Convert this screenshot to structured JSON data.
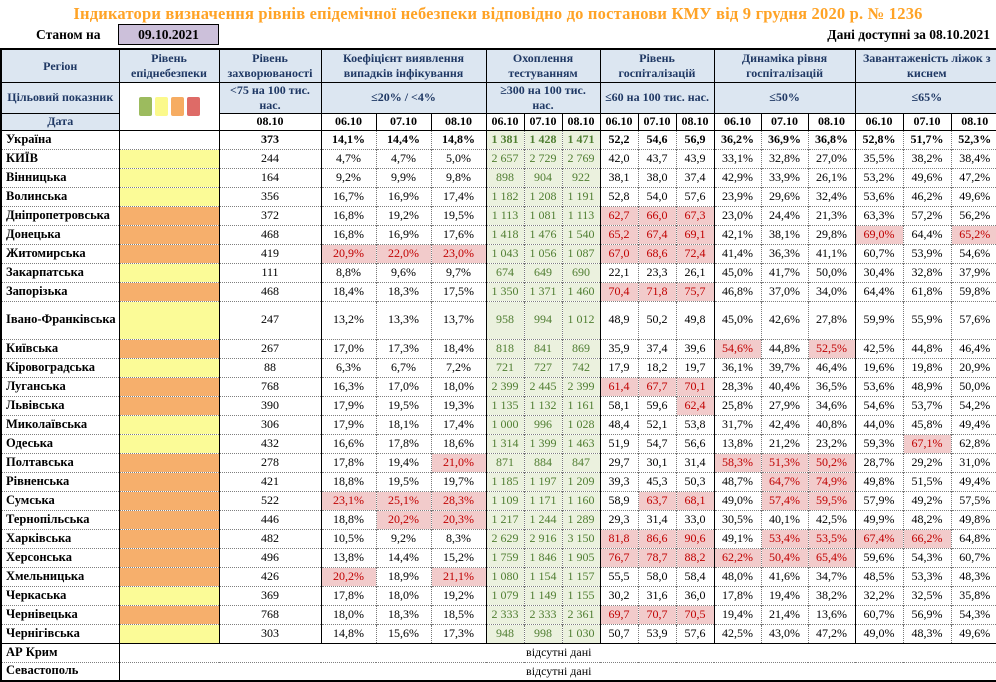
{
  "title": "Індикатори визначення рівнів епідемічної небезпеки відповідно до постанови КМУ від 9 грудня 2020 р. № 1236",
  "as_of": {
    "label": "Станом на",
    "date": "09.10.2021"
  },
  "available": {
    "label": "Дані доступні за",
    "date": "08.10.2021"
  },
  "colors": {
    "header_bg": "#DCE6F1",
    "header_text": "#1F3864",
    "title_orange": "#FFA326",
    "asof_box_bg": "#CCC0DA",
    "test_bg": "#EBF1DE",
    "test_text": "#507E32",
    "alert_bg": "#F2CBCB",
    "alert_text": "#C00000"
  },
  "level_colors": {
    "yellow": "#FBFB97",
    "orange": "#F6AF6C"
  },
  "legend": {
    "colors": [
      "#9CBB5E",
      "#FBF98B",
      "#F6AC62",
      "#DE6B67"
    ]
  },
  "header": {
    "region_label": "Регіон",
    "target_label": "Цільовий показник",
    "date_label": "Дата",
    "groups": [
      {
        "name": "Рівень епіднебезпеки",
        "target": "",
        "dates": []
      },
      {
        "name": "Рівень захворюваності",
        "target": "<75 на 100 тис. нас.",
        "dates": [
          "08.10"
        ]
      },
      {
        "name": "Коефіцієнт виявлення випадків інфікування",
        "target": "≤20% / <4%",
        "dates": [
          "06.10",
          "07.10",
          "08.10"
        ]
      },
      {
        "name": "Охоплення тестуванням",
        "target": "≥300 на 100 тис. нас.",
        "dates": [
          "06.10",
          "07.10",
          "08.10"
        ]
      },
      {
        "name": "Рівень госпіталізацій",
        "target": "≤60 на 100 тис. нас.",
        "dates": [
          "06.10",
          "07.10",
          "08.10"
        ]
      },
      {
        "name": "Динаміка рівня госпіталізацій",
        "target": "≤50%",
        "dates": [
          "06.10",
          "07.10",
          "08.10"
        ]
      },
      {
        "name": "Завантаженість ліжок з киснем",
        "target": "≤65%",
        "dates": [
          "06.10",
          "07.10",
          "08.10"
        ]
      }
    ]
  },
  "rows": [
    {
      "region": "Україна",
      "level": "",
      "bold": true,
      "incidence": "373",
      "coef": [
        "14,1%",
        "14,4%",
        "14,8%"
      ],
      "test": [
        "1 381",
        "1 428",
        "1 471"
      ],
      "hosp": [
        "52,2",
        "54,6",
        "56,9"
      ],
      "dyn": [
        "36,2%",
        "36,9%",
        "36,8%"
      ],
      "beds": [
        "52,8%",
        "51,7%",
        "52,3%"
      ]
    },
    {
      "region": "КИЇВ",
      "level": "yellow",
      "incidence": "244",
      "coef": [
        "4,7%",
        "4,7%",
        "5,0%"
      ],
      "test": [
        "2 657",
        "2 729",
        "2 769"
      ],
      "hosp": [
        "42,0",
        "43,7",
        "43,9"
      ],
      "dyn": [
        "33,1%",
        "32,8%",
        "27,0%"
      ],
      "beds": [
        "35,5%",
        "38,2%",
        "38,4%"
      ]
    },
    {
      "region": "Вінницька",
      "level": "yellow",
      "incidence": "164",
      "coef": [
        "9,2%",
        "9,9%",
        "9,8%"
      ],
      "test": [
        "898",
        "904",
        "922"
      ],
      "hosp": [
        "38,1",
        "38,0",
        "37,4"
      ],
      "dyn": [
        "42,9%",
        "33,9%",
        "26,1%"
      ],
      "beds": [
        "53,2%",
        "49,6%",
        "47,2%"
      ]
    },
    {
      "region": "Волинська",
      "level": "yellow",
      "incidence": "356",
      "coef": [
        "16,7%",
        "16,9%",
        "17,4%"
      ],
      "test": [
        "1 182",
        "1 208",
        "1 191"
      ],
      "hosp": [
        "52,8",
        "54,0",
        "57,6"
      ],
      "dyn": [
        "23,9%",
        "29,6%",
        "32,4%"
      ],
      "beds": [
        "53,6%",
        "46,2%",
        "49,6%"
      ]
    },
    {
      "region": "Дніпропетровська",
      "level": "orange",
      "incidence": "372",
      "coef": [
        "16,8%",
        "19,2%",
        "19,5%"
      ],
      "test": [
        "1 113",
        "1 081",
        "1 113"
      ],
      "hosp": [
        {
          "v": "62,7",
          "red": true
        },
        {
          "v": "66,0",
          "red": true
        },
        {
          "v": "67,3",
          "red": true
        }
      ],
      "dyn": [
        "23,0%",
        "24,4%",
        "21,3%"
      ],
      "beds": [
        "63,3%",
        "57,2%",
        "56,2%"
      ]
    },
    {
      "region": "Донецька",
      "level": "orange",
      "incidence": "468",
      "coef": [
        "16,8%",
        "16,9%",
        "17,6%"
      ],
      "test": [
        "1 418",
        "1 476",
        "1 540"
      ],
      "hosp": [
        {
          "v": "65,2",
          "red": true
        },
        {
          "v": "67,4",
          "red": true
        },
        {
          "v": "69,1",
          "red": true
        }
      ],
      "dyn": [
        "42,1%",
        "38,1%",
        "29,8%"
      ],
      "beds": [
        {
          "v": "69,0%",
          "red": true
        },
        "64,4%",
        {
          "v": "65,2%",
          "red": true
        }
      ]
    },
    {
      "region": "Житомирська",
      "level": "orange",
      "incidence": "419",
      "coef": [
        {
          "v": "20,9%",
          "red": true
        },
        {
          "v": "22,0%",
          "red": true
        },
        {
          "v": "23,0%",
          "red": true
        }
      ],
      "test": [
        "1 043",
        "1 056",
        "1 087"
      ],
      "hosp": [
        {
          "v": "67,0",
          "red": true
        },
        {
          "v": "68,6",
          "red": true
        },
        {
          "v": "72,4",
          "red": true
        }
      ],
      "dyn": [
        "41,4%",
        "36,3%",
        "41,1%"
      ],
      "beds": [
        "60,7%",
        "53,9%",
        "54,6%"
      ]
    },
    {
      "region": "Закарпатська",
      "level": "yellow",
      "incidence": "111",
      "coef": [
        "8,8%",
        "9,6%",
        "9,7%"
      ],
      "test": [
        "674",
        "649",
        "690"
      ],
      "hosp": [
        "22,1",
        "23,3",
        "26,1"
      ],
      "dyn": [
        "45,0%",
        "41,7%",
        "50,0%"
      ],
      "beds": [
        "30,4%",
        "32,8%",
        "37,9%"
      ]
    },
    {
      "region": "Запорізька",
      "level": "orange",
      "incidence": "468",
      "coef": [
        "18,4%",
        "18,3%",
        "17,5%"
      ],
      "test": [
        "1 350",
        "1 371",
        "1 460"
      ],
      "hosp": [
        {
          "v": "70,4",
          "red": true
        },
        {
          "v": "71,8",
          "red": true
        },
        {
          "v": "75,7",
          "red": true
        }
      ],
      "dyn": [
        "46,8%",
        "37,0%",
        "34,0%"
      ],
      "beds": [
        "64,4%",
        "61,8%",
        "59,8%"
      ]
    },
    {
      "region": "Івано-Франківська",
      "level": "yellow",
      "tall": true,
      "incidence": "247",
      "coef": [
        "13,2%",
        "13,3%",
        "13,7%"
      ],
      "test": [
        "958",
        "994",
        "1 012"
      ],
      "hosp": [
        "48,9",
        "50,2",
        "49,8"
      ],
      "dyn": [
        "45,0%",
        "42,6%",
        "27,8%"
      ],
      "beds": [
        "59,9%",
        "55,9%",
        "57,6%"
      ]
    },
    {
      "region": "Київська",
      "level": "orange",
      "incidence": "267",
      "coef": [
        "17,0%",
        "17,3%",
        "18,4%"
      ],
      "test": [
        "818",
        "841",
        "869"
      ],
      "hosp": [
        "35,9",
        "37,4",
        "39,6"
      ],
      "dyn": [
        {
          "v": "54,6%",
          "red": true
        },
        "44,8%",
        {
          "v": "52,5%",
          "red": true
        }
      ],
      "beds": [
        "42,5%",
        "44,8%",
        "46,4%"
      ]
    },
    {
      "region": "Кіровоградська",
      "level": "yellow",
      "incidence": "88",
      "coef": [
        "6,3%",
        "6,7%",
        "7,2%"
      ],
      "test": [
        "721",
        "727",
        "742"
      ],
      "hosp": [
        "17,9",
        "18,2",
        "19,7"
      ],
      "dyn": [
        "36,1%",
        "39,7%",
        "46,4%"
      ],
      "beds": [
        "19,6%",
        "19,8%",
        "20,9%"
      ]
    },
    {
      "region": "Луганська",
      "level": "orange",
      "incidence": "768",
      "coef": [
        "16,3%",
        "17,0%",
        "18,0%"
      ],
      "test": [
        "2 399",
        "2 445",
        "2 399"
      ],
      "hosp": [
        {
          "v": "61,4",
          "red": true
        },
        {
          "v": "67,7",
          "red": true
        },
        {
          "v": "70,1",
          "red": true
        }
      ],
      "dyn": [
        "28,3%",
        "40,4%",
        "36,5%"
      ],
      "beds": [
        "53,6%",
        "48,9%",
        "50,0%"
      ]
    },
    {
      "region": "Львівська",
      "level": "orange",
      "incidence": "390",
      "coef": [
        "17,9%",
        "19,5%",
        "19,3%"
      ],
      "test": [
        "1 135",
        "1 132",
        "1 161"
      ],
      "hosp": [
        "58,1",
        "59,6",
        {
          "v": "62,4",
          "red": true
        }
      ],
      "dyn": [
        "25,8%",
        "27,9%",
        "34,6%"
      ],
      "beds": [
        "54,6%",
        "53,7%",
        "54,2%"
      ]
    },
    {
      "region": "Миколаївська",
      "level": "yellow",
      "incidence": "306",
      "coef": [
        "17,9%",
        "18,1%",
        "17,4%"
      ],
      "test": [
        "1 000",
        "996",
        "1 028"
      ],
      "hosp": [
        "48,4",
        "52,1",
        "53,8"
      ],
      "dyn": [
        "31,7%",
        "42,4%",
        "40,8%"
      ],
      "beds": [
        "44,0%",
        "45,8%",
        "49,4%"
      ]
    },
    {
      "region": "Одеська",
      "level": "yellow",
      "incidence": "432",
      "coef": [
        "16,6%",
        "17,8%",
        "18,6%"
      ],
      "test": [
        "1 314",
        "1 399",
        "1 463"
      ],
      "hosp": [
        "51,9",
        "54,7",
        "56,6"
      ],
      "dyn": [
        "13,8%",
        "21,2%",
        "23,2%"
      ],
      "beds": [
        "59,3%",
        {
          "v": "67,1%",
          "red": true
        },
        "62,8%"
      ]
    },
    {
      "region": "Полтавська",
      "level": "orange",
      "incidence": "278",
      "coef": [
        "17,8%",
        "19,4%",
        {
          "v": "21,0%",
          "red": true
        }
      ],
      "test": [
        "871",
        "884",
        "847"
      ],
      "hosp": [
        "29,7",
        "30,1",
        "31,4"
      ],
      "dyn": [
        {
          "v": "58,3%",
          "red": true
        },
        {
          "v": "51,3%",
          "red": true
        },
        {
          "v": "50,2%",
          "red": true
        }
      ],
      "beds": [
        "28,7%",
        "29,2%",
        "31,0%"
      ]
    },
    {
      "region": "Рівненська",
      "level": "orange",
      "incidence": "421",
      "coef": [
        "18,8%",
        "19,5%",
        "19,7%"
      ],
      "test": [
        "1 185",
        "1 197",
        "1 209"
      ],
      "hosp": [
        "39,3",
        "45,3",
        "50,3"
      ],
      "dyn": [
        "48,7%",
        {
          "v": "64,7%",
          "red": true
        },
        {
          "v": "74,9%",
          "red": true
        }
      ],
      "beds": [
        "49,8%",
        "51,5%",
        "49,4%"
      ]
    },
    {
      "region": "Сумська",
      "level": "orange",
      "incidence": "522",
      "coef": [
        {
          "v": "23,1%",
          "red": true
        },
        {
          "v": "25,1%",
          "red": true
        },
        {
          "v": "28,3%",
          "red": true
        }
      ],
      "test": [
        "1 109",
        "1 171",
        "1 160"
      ],
      "hosp": [
        "58,9",
        {
          "v": "63,7",
          "red": true
        },
        {
          "v": "68,1",
          "red": true
        }
      ],
      "dyn": [
        "49,0%",
        {
          "v": "57,4%",
          "red": true
        },
        {
          "v": "59,5%",
          "red": true
        }
      ],
      "beds": [
        "57,9%",
        "49,2%",
        "57,5%"
      ]
    },
    {
      "region": "Тернопільська",
      "level": "orange",
      "incidence": "446",
      "coef": [
        "18,8%",
        {
          "v": "20,2%",
          "red": true
        },
        {
          "v": "20,3%",
          "red": true
        }
      ],
      "test": [
        "1 217",
        "1 244",
        "1 289"
      ],
      "hosp": [
        "29,3",
        "31,4",
        "33,0"
      ],
      "dyn": [
        "30,5%",
        "40,1%",
        "42,5%"
      ],
      "beds": [
        "49,9%",
        "48,2%",
        "49,8%"
      ]
    },
    {
      "region": "Харківська",
      "level": "orange",
      "incidence": "482",
      "coef": [
        "10,5%",
        "9,2%",
        "8,3%"
      ],
      "test": [
        "2 629",
        "2 916",
        "3 150"
      ],
      "hosp": [
        {
          "v": "81,8",
          "red": true
        },
        {
          "v": "86,6",
          "red": true
        },
        {
          "v": "90,6",
          "red": true
        }
      ],
      "dyn": [
        "49,1%",
        {
          "v": "53,4%",
          "red": true
        },
        {
          "v": "53,5%",
          "red": true
        }
      ],
      "beds": [
        {
          "v": "67,4%",
          "red": true
        },
        {
          "v": "66,2%",
          "red": true
        },
        "64,8%"
      ]
    },
    {
      "region": "Херсонська",
      "level": "orange",
      "incidence": "496",
      "coef": [
        "13,8%",
        "14,4%",
        "15,2%"
      ],
      "test": [
        "1 759",
        "1 846",
        "1 905"
      ],
      "hosp": [
        {
          "v": "76,7",
          "red": true
        },
        {
          "v": "78,7",
          "red": true
        },
        {
          "v": "88,2",
          "red": true
        }
      ],
      "dyn": [
        {
          "v": "62,2%",
          "red": true
        },
        {
          "v": "50,4%",
          "red": true
        },
        {
          "v": "65,4%",
          "red": true
        }
      ],
      "beds": [
        "59,6%",
        "54,3%",
        "60,7%"
      ]
    },
    {
      "region": "Хмельницька",
      "level": "orange",
      "incidence": "426",
      "coef": [
        {
          "v": "20,2%",
          "red": true
        },
        "18,9%",
        {
          "v": "21,1%",
          "red": true
        }
      ],
      "test": [
        "1 080",
        "1 154",
        "1 157"
      ],
      "hosp": [
        "55,5",
        "58,0",
        "58,4"
      ],
      "dyn": [
        "48,0%",
        "41,6%",
        "34,7%"
      ],
      "beds": [
        "48,5%",
        "53,3%",
        "48,3%"
      ]
    },
    {
      "region": "Черкаська",
      "level": "yellow",
      "incidence": "369",
      "coef": [
        "17,8%",
        "18,0%",
        "19,2%"
      ],
      "test": [
        "1 079",
        "1 149",
        "1 155"
      ],
      "hosp": [
        "30,2",
        "31,6",
        "36,0"
      ],
      "dyn": [
        "17,8%",
        "19,4%",
        "38,2%"
      ],
      "beds": [
        "32,2%",
        "32,5%",
        "35,8%"
      ]
    },
    {
      "region": "Чернівецька",
      "level": "orange",
      "incidence": "768",
      "coef": [
        "18,0%",
        "18,3%",
        "18,5%"
      ],
      "test": [
        "2 333",
        "2 333",
        "2 361"
      ],
      "hosp": [
        {
          "v": "69,7",
          "red": true
        },
        {
          "v": "70,7",
          "red": true
        },
        {
          "v": "70,5",
          "red": true
        }
      ],
      "dyn": [
        "19,4%",
        "21,4%",
        "13,6%"
      ],
      "beds": [
        "60,7%",
        "56,9%",
        "54,3%"
      ]
    },
    {
      "region": "Чернігівська",
      "level": "yellow",
      "incidence": "303",
      "coef": [
        "14,8%",
        "15,6%",
        "17,3%"
      ],
      "test": [
        "948",
        "998",
        "1 030"
      ],
      "hosp": [
        "50,7",
        "53,9",
        "57,6"
      ],
      "dyn": [
        "42,5%",
        "43,0%",
        "47,2%"
      ],
      "beds": [
        "49,0%",
        "48,3%",
        "49,6%"
      ]
    }
  ],
  "no_data_rows": [
    {
      "region": "АР Крим",
      "text": "відсутні дані"
    },
    {
      "region": "Севастополь",
      "text": "відсутні дані"
    }
  ]
}
